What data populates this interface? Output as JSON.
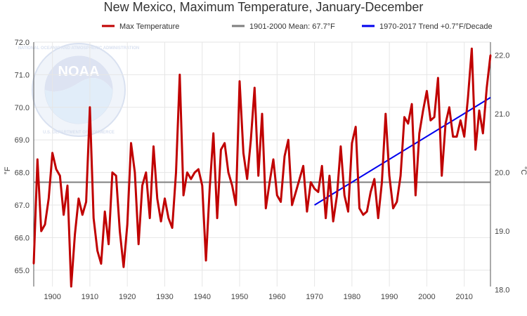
{
  "colors": {
    "series": "#c00000",
    "mean": "#7f7f7f",
    "trend": "#0000ee",
    "grid": "#e6e6e6",
    "logo_blue": "#d8dff0",
    "logo_light": "#e9f1fb"
  },
  "logo": {
    "icon": "noaa-logo-icon",
    "text": "NOAA",
    "ring_top": "NATIONAL OCEANIC AND ATMOSPHERIC ADMINISTRATION",
    "ring_bottom": "U.S. DEPARTMENT OF COMMERCE"
  },
  "chart_data": {
    "type": "line",
    "title": "New Mexico, Maximum Temperature, January-December",
    "legend": {
      "position": "top",
      "items": [
        {
          "label": "Max Temperature",
          "color": "#c00000"
        },
        {
          "label": "1901-2000 Mean: 67.7°F",
          "color": "#7f7f7f"
        },
        {
          "label": "1970-2017 Trend +0.7°F/Decade",
          "color": "#0000ee"
        }
      ]
    },
    "xlim": [
      1895,
      2017
    ],
    "x_ticks": [
      1900,
      1910,
      1920,
      1930,
      1940,
      1950,
      1960,
      1970,
      1980,
      1990,
      2000,
      2010
    ],
    "ylim": [
      64.5,
      72.0
    ],
    "y_ticks": [
      65.0,
      66.0,
      67.0,
      68.0,
      69.0,
      70.0,
      71.0,
      72.0
    ],
    "ylabel_left": "°F",
    "ylabel_right": "°C",
    "right_ticks": [
      18.0,
      19.0,
      20.0,
      21.0,
      22.0
    ],
    "grid": true,
    "mean_value": 67.7,
    "trend": {
      "x": [
        1970,
        2017
      ],
      "y": [
        67.0,
        70.3
      ]
    },
    "series": [
      {
        "name": "Max Temperature",
        "x": [
          1895,
          1896,
          1897,
          1898,
          1899,
          1900,
          1901,
          1902,
          1903,
          1904,
          1905,
          1906,
          1907,
          1908,
          1909,
          1910,
          1911,
          1912,
          1913,
          1914,
          1915,
          1916,
          1917,
          1918,
          1919,
          1920,
          1921,
          1922,
          1923,
          1924,
          1925,
          1926,
          1927,
          1928,
          1929,
          1930,
          1931,
          1932,
          1933,
          1934,
          1935,
          1936,
          1937,
          1938,
          1939,
          1940,
          1941,
          1942,
          1943,
          1944,
          1945,
          1946,
          1947,
          1948,
          1949,
          1950,
          1951,
          1952,
          1953,
          1954,
          1955,
          1956,
          1957,
          1958,
          1959,
          1960,
          1961,
          1962,
          1963,
          1964,
          1965,
          1966,
          1967,
          1968,
          1969,
          1970,
          1971,
          1972,
          1973,
          1974,
          1975,
          1976,
          1977,
          1978,
          1979,
          1980,
          1981,
          1982,
          1983,
          1984,
          1985,
          1986,
          1987,
          1988,
          1989,
          1990,
          1991,
          1992,
          1993,
          1994,
          1995,
          1996,
          1997,
          1998,
          1999,
          2000,
          2001,
          2002,
          2003,
          2004,
          2005,
          2006,
          2007,
          2008,
          2009,
          2010,
          2011,
          2012,
          2013,
          2014,
          2015,
          2016,
          2017
        ],
        "values": [
          65.2,
          68.4,
          66.2,
          66.4,
          67.2,
          68.6,
          68.1,
          67.9,
          66.7,
          67.6,
          64.5,
          66.1,
          67.2,
          66.7,
          67.1,
          70.0,
          66.6,
          65.6,
          65.2,
          66.8,
          65.8,
          68.0,
          67.9,
          66.2,
          65.1,
          66.4,
          68.9,
          68.0,
          65.8,
          67.6,
          68.0,
          66.6,
          68.8,
          67.2,
          66.5,
          67.2,
          66.6,
          66.3,
          68.0,
          71.0,
          67.3,
          68.0,
          67.8,
          68.0,
          68.1,
          67.6,
          65.3,
          67.5,
          69.2,
          66.6,
          68.7,
          68.9,
          68.0,
          67.6,
          67.0,
          70.8,
          68.6,
          67.8,
          69.0,
          70.6,
          67.9,
          69.8,
          66.9,
          67.7,
          68.4,
          67.3,
          67.1,
          68.5,
          69.0,
          67.0,
          67.4,
          67.8,
          68.2,
          66.8,
          67.7,
          67.5,
          67.4,
          68.2,
          66.6,
          67.9,
          66.5,
          67.3,
          68.8,
          67.3,
          66.8,
          68.9,
          69.4,
          66.9,
          66.7,
          66.8,
          67.4,
          67.8,
          66.6,
          67.7,
          69.8,
          67.9,
          66.9,
          67.1,
          67.9,
          69.7,
          69.5,
          70.1,
          67.3,
          69.2,
          69.9,
          70.5,
          69.6,
          69.7,
          70.9,
          67.9,
          69.5,
          70.0,
          69.1,
          69.1,
          69.6,
          69.1,
          70.3,
          71.8,
          68.7,
          69.9,
          69.2,
          70.6,
          71.6
        ]
      }
    ]
  }
}
